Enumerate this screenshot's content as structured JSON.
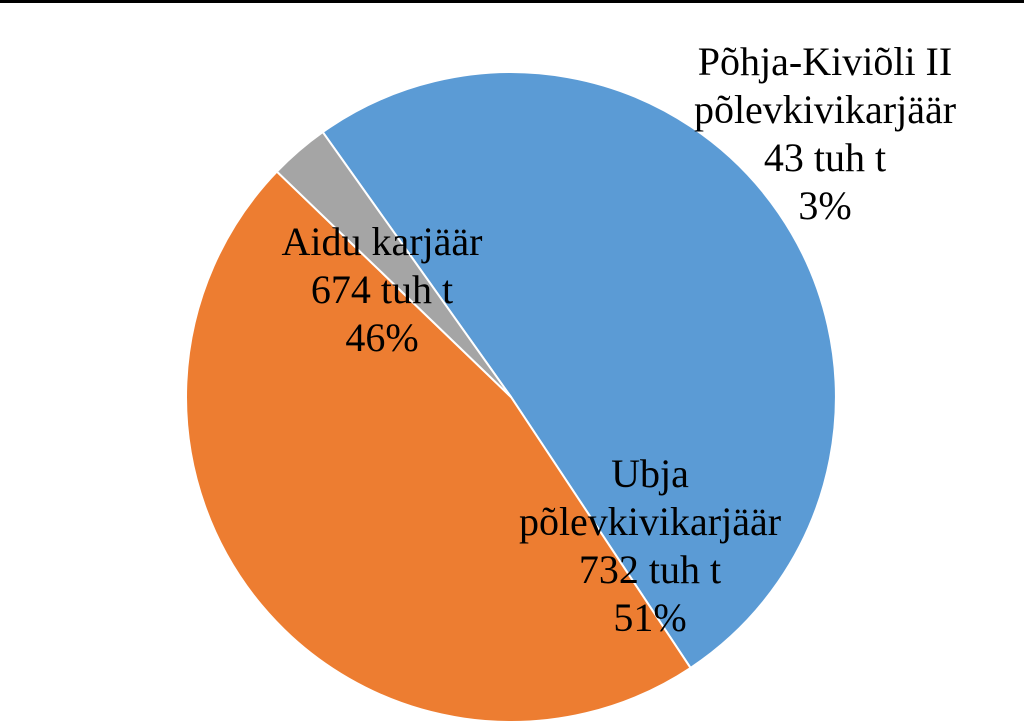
{
  "chart_data": {
    "type": "pie",
    "title": "",
    "unit": "tuh t",
    "slices": [
      {
        "name": "Ubja põlevkivikarjäär",
        "value": 732,
        "percent": 51,
        "color": "#5b9bd5",
        "label_lines": [
          "Ubja",
          "põlevkivikarjäär",
          "732 tuh t",
          "51%"
        ]
      },
      {
        "name": "Aidu karjäär",
        "value": 674,
        "percent": 46,
        "color": "#ed7d31",
        "label_lines": [
          "Aidu karjäär",
          "674 tuh t",
          "46%"
        ]
      },
      {
        "name": "Põhja-Kiviõli II põlevkivikarjäär",
        "value": 43,
        "percent": 3,
        "color": "#a5a5a5",
        "label_lines": [
          "Põhja-Kiviõli II",
          "põlevkivikarjäär",
          "43 tuh t",
          "3%"
        ]
      }
    ],
    "start_position": "bottom-left, clockwise from Ubja",
    "legend": "none"
  }
}
